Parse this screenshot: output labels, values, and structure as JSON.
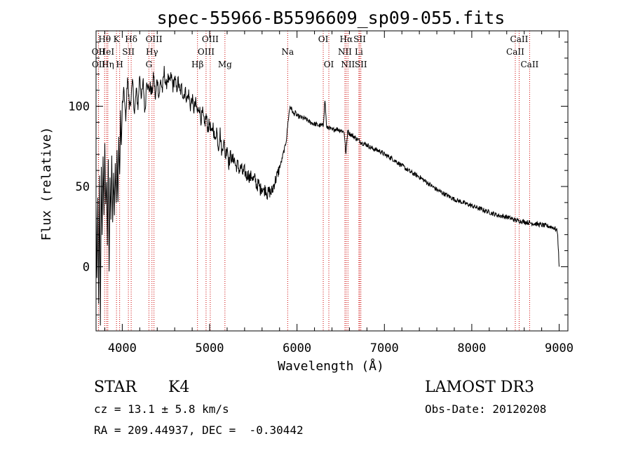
{
  "chart_data": {
    "type": "line",
    "title": "spec-55966-B5596609_sp09-055.fits",
    "xlabel": "Wavelength (Å)",
    "ylabel": "Flux (relative)",
    "xlim": [
      3700,
      9100
    ],
    "ylim": [
      -40,
      147
    ],
    "xticks": [
      4000,
      5000,
      6000,
      7000,
      8000,
      9000
    ],
    "yticks": [
      0,
      50,
      100
    ],
    "series": [
      {
        "name": "flux",
        "x": [
          3700,
          3710,
          3720,
          3730,
          3740,
          3750,
          3760,
          3770,
          3780,
          3790,
          3800,
          3810,
          3820,
          3830,
          3840,
          3850,
          3860,
          3870,
          3880,
          3890,
          3900,
          3910,
          3920,
          3930,
          3940,
          3950,
          3960,
          3970,
          3980,
          3990,
          4000,
          4020,
          4040,
          4060,
          4080,
          4100,
          4120,
          4140,
          4160,
          4180,
          4200,
          4220,
          4240,
          4260,
          4280,
          4300,
          4320,
          4340,
          4360,
          4380,
          4400,
          4420,
          4440,
          4460,
          4480,
          4500,
          4520,
          4540,
          4560,
          4580,
          4600,
          4620,
          4640,
          4660,
          4680,
          4700,
          4720,
          4740,
          4760,
          4780,
          4800,
          4820,
          4840,
          4860,
          4880,
          4900,
          4920,
          4940,
          4960,
          4980,
          5000,
          5020,
          5040,
          5060,
          5080,
          5100,
          5120,
          5140,
          5160,
          5180,
          5200,
          5220,
          5240,
          5260,
          5280,
          5300,
          5320,
          5340,
          5360,
          5380,
          5400,
          5420,
          5440,
          5460,
          5480,
          5500,
          5520,
          5540,
          5560,
          5580,
          5600,
          5620,
          5640,
          5660,
          5680,
          5700,
          5720,
          5740,
          5760,
          5780,
          5800,
          5820,
          5840,
          5860,
          5880,
          5900,
          5920,
          5940,
          5960,
          5980,
          6000,
          6050,
          6100,
          6150,
          6200,
          6250,
          6300,
          6320,
          6340,
          6360,
          6400,
          6450,
          6500,
          6540,
          6560,
          6580,
          6600,
          6650,
          6700,
          6750,
          6800,
          6850,
          6900,
          6950,
          7000,
          7100,
          7200,
          7300,
          7400,
          7500,
          7600,
          7700,
          7800,
          7900,
          8000,
          8100,
          8200,
          8300,
          8400,
          8500,
          8600,
          8700,
          8800,
          8900,
          8950,
          8980,
          8990,
          9000
        ],
        "y": [
          40,
          -10,
          45,
          -25,
          55,
          -35,
          60,
          20,
          70,
          30,
          75,
          40,
          50,
          15,
          65,
          -5,
          55,
          30,
          70,
          25,
          60,
          35,
          65,
          40,
          72,
          40,
          80,
          55,
          95,
          75,
          100,
          110,
          90,
          120,
          100,
          105,
          115,
          95,
          110,
          100,
          120,
          105,
          115,
          95,
          118,
          110,
          112,
          108,
          120,
          104,
          118,
          106,
          116,
          110,
          122,
          112,
          118,
          114,
          119,
          112,
          118,
          110,
          116,
          108,
          112,
          106,
          110,
          104,
          108,
          100,
          105,
          98,
          102,
          96,
          100,
          92,
          96,
          88,
          94,
          86,
          90,
          82,
          88,
          78,
          86,
          74,
          84,
          70,
          80,
          68,
          76,
          64,
          70,
          66,
          68,
          62,
          64,
          60,
          62,
          58,
          60,
          56,
          58,
          55,
          57,
          54,
          55,
          50,
          52,
          48,
          50,
          47,
          49,
          45,
          47,
          46,
          48,
          52,
          55,
          58,
          62,
          65,
          70,
          74,
          80,
          92,
          100,
          98,
          95,
          96,
          94,
          93,
          92,
          90,
          89,
          88,
          88,
          104,
          86,
          87,
          85,
          86,
          85,
          84,
          70,
          85,
          83,
          81,
          79,
          77,
          76,
          74,
          73,
          72,
          70,
          67,
          63,
          59,
          56,
          52,
          48,
          45,
          42,
          40,
          38,
          36,
          34,
          32,
          31,
          29,
          28,
          27,
          26,
          25,
          24,
          22,
          12,
          0
        ]
      }
    ],
    "spectral_lines": [
      {
        "label": "Hθ",
        "wavelength": 3798,
        "row": 1
      },
      {
        "label": "K",
        "wavelength": 3934,
        "row": 1
      },
      {
        "label": "Hδ",
        "wavelength": 4102,
        "row": 1
      },
      {
        "label": "OIII",
        "wavelength": 4363,
        "row": 1
      },
      {
        "label": "OIII",
        "wavelength": 5007,
        "row": 1
      },
      {
        "label": "OI",
        "wavelength": 6300,
        "row": 1
      },
      {
        "label": "Hα",
        "wavelength": 6563,
        "row": 1
      },
      {
        "label": "SII",
        "wavelength": 6717,
        "row": 1
      },
      {
        "label": "CaII",
        "wavelength": 8542,
        "row": 1
      },
      {
        "label": "OII",
        "wavelength": 3727,
        "row": 2
      },
      {
        "label": "HeI",
        "wavelength": 3820,
        "row": 2
      },
      {
        "label": "SII",
        "wavelength": 4070,
        "row": 2
      },
      {
        "label": "Hγ",
        "wavelength": 4340,
        "row": 2
      },
      {
        "label": "OIII",
        "wavelength": 4959,
        "row": 2
      },
      {
        "label": "Na",
        "wavelength": 5893,
        "row": 2
      },
      {
        "label": "NII",
        "wavelength": 6548,
        "row": 2
      },
      {
        "label": "Li",
        "wavelength": 6708,
        "row": 2
      },
      {
        "label": "CaII",
        "wavelength": 8498,
        "row": 2
      },
      {
        "label": "OII",
        "wavelength": 3729,
        "row": 3
      },
      {
        "label": "Hη",
        "wavelength": 3835,
        "row": 3
      },
      {
        "label": "H",
        "wavelength": 3970,
        "row": 3
      },
      {
        "label": "G",
        "wavelength": 4305,
        "row": 3
      },
      {
        "label": "Hβ",
        "wavelength": 4861,
        "row": 3
      },
      {
        "label": "Mg",
        "wavelength": 5175,
        "row": 3
      },
      {
        "label": "OI",
        "wavelength": 6364,
        "row": 3
      },
      {
        "label": "NII",
        "wavelength": 6583,
        "row": 3
      },
      {
        "label": "SII",
        "wavelength": 6731,
        "row": 3
      },
      {
        "label": "CaII",
        "wavelength": 8662,
        "row": 3
      }
    ]
  },
  "info": {
    "class_label": "STAR",
    "subclass": "K4",
    "survey": "LAMOST DR3",
    "cz": "cz = 13.1 ± 5.8 km/s",
    "obs_date": "Obs-Date: 20120208",
    "coords": "RA = 209.44937, DEC =  -0.30442"
  },
  "colors": {
    "line": "#000000",
    "marker_line": "#cc0000",
    "axis": "#000000"
  }
}
